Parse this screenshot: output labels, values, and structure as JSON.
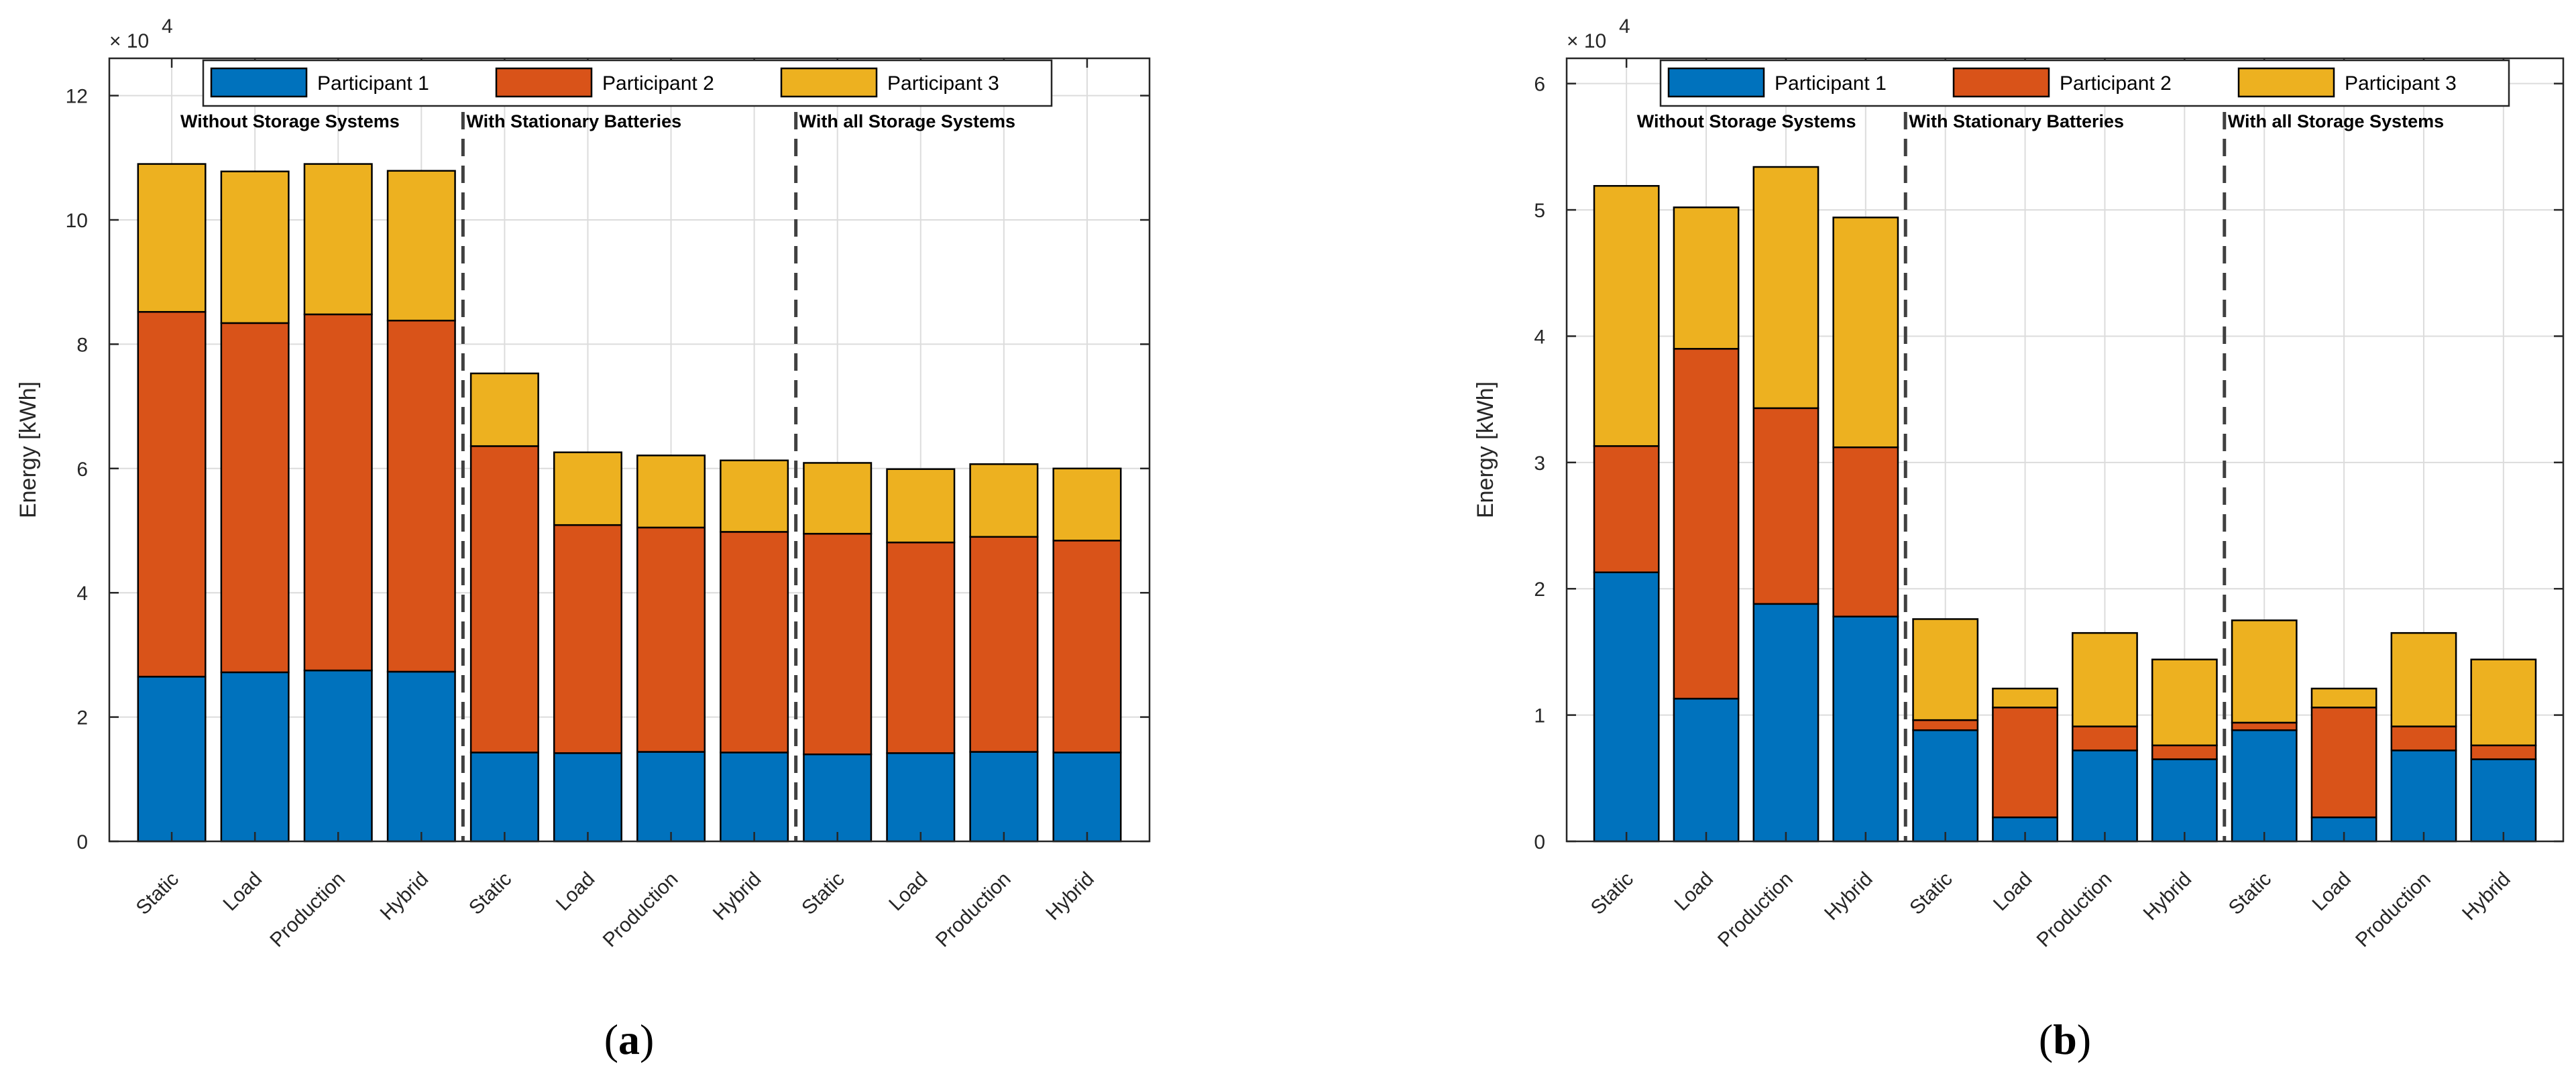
{
  "chart_data": [
    {
      "type": "bar",
      "stacked": true,
      "caption_letter": "a",
      "ylabel": "Energy [kWh]",
      "exponent_label": "× 10",
      "exponent_power": "4",
      "ylim": [
        0,
        12.6
      ],
      "yticks": [
        0,
        2,
        4,
        6,
        8,
        10,
        12
      ],
      "grid": true,
      "legend": "top",
      "categories": [
        "Static",
        "Load",
        "Production",
        "Hybrid",
        "Static",
        "Load",
        "Production",
        "Hybrid",
        "Static",
        "Load",
        "Production",
        "Hybrid"
      ],
      "groups": [
        {
          "label": "Without Storage Systems",
          "start": 0
        },
        {
          "label": "With Stationary Batteries",
          "start": 4
        },
        {
          "label": "With all Storage Systems",
          "start": 8
        }
      ],
      "series": [
        {
          "name": "Participant 1",
          "color": "#0072BD",
          "values": [
            2.65,
            2.72,
            2.75,
            2.73,
            1.43,
            1.42,
            1.44,
            1.43,
            1.4,
            1.42,
            1.44,
            1.43
          ]
        },
        {
          "name": "Participant 2",
          "color": "#D95319",
          "values": [
            5.87,
            5.62,
            5.73,
            5.65,
            4.93,
            3.67,
            3.61,
            3.55,
            3.55,
            3.39,
            3.46,
            3.41
          ]
        },
        {
          "name": "Participant 3",
          "color": "#EDB120",
          "values": [
            2.38,
            2.44,
            2.42,
            2.41,
            1.17,
            1.17,
            1.16,
            1.15,
            1.14,
            1.18,
            1.17,
            1.16
          ]
        }
      ]
    },
    {
      "type": "bar",
      "stacked": true,
      "caption_letter": "b",
      "ylabel": "Energy [kWh]",
      "exponent_label": "× 10",
      "exponent_power": "4",
      "ylim": [
        0,
        6.2
      ],
      "yticks": [
        0,
        1,
        2,
        3,
        4,
        5,
        6
      ],
      "grid": true,
      "legend": "top",
      "categories": [
        "Static",
        "Load",
        "Production",
        "Hybrid",
        "Static",
        "Load",
        "Production",
        "Hybrid",
        "Static",
        "Load",
        "Production",
        "Hybrid"
      ],
      "groups": [
        {
          "label": "Without Storage Systems",
          "start": 0
        },
        {
          "label": "With Stationary Batteries",
          "start": 4
        },
        {
          "label": "With all Storage Systems",
          "start": 8
        }
      ],
      "series": [
        {
          "name": "Participant 1",
          "color": "#0072BD",
          "values": [
            2.13,
            1.13,
            1.88,
            1.78,
            0.88,
            0.19,
            0.72,
            0.65,
            0.88,
            0.19,
            0.72,
            0.65
          ]
        },
        {
          "name": "Participant 2",
          "color": "#D95319",
          "values": [
            1.0,
            2.77,
            1.55,
            1.34,
            0.08,
            0.87,
            0.19,
            0.11,
            0.06,
            0.87,
            0.19,
            0.11
          ]
        },
        {
          "name": "Participant 3",
          "color": "#EDB120",
          "values": [
            2.06,
            1.12,
            1.91,
            1.82,
            0.8,
            0.15,
            0.74,
            0.68,
            0.81,
            0.15,
            0.74,
            0.68
          ]
        }
      ]
    }
  ]
}
